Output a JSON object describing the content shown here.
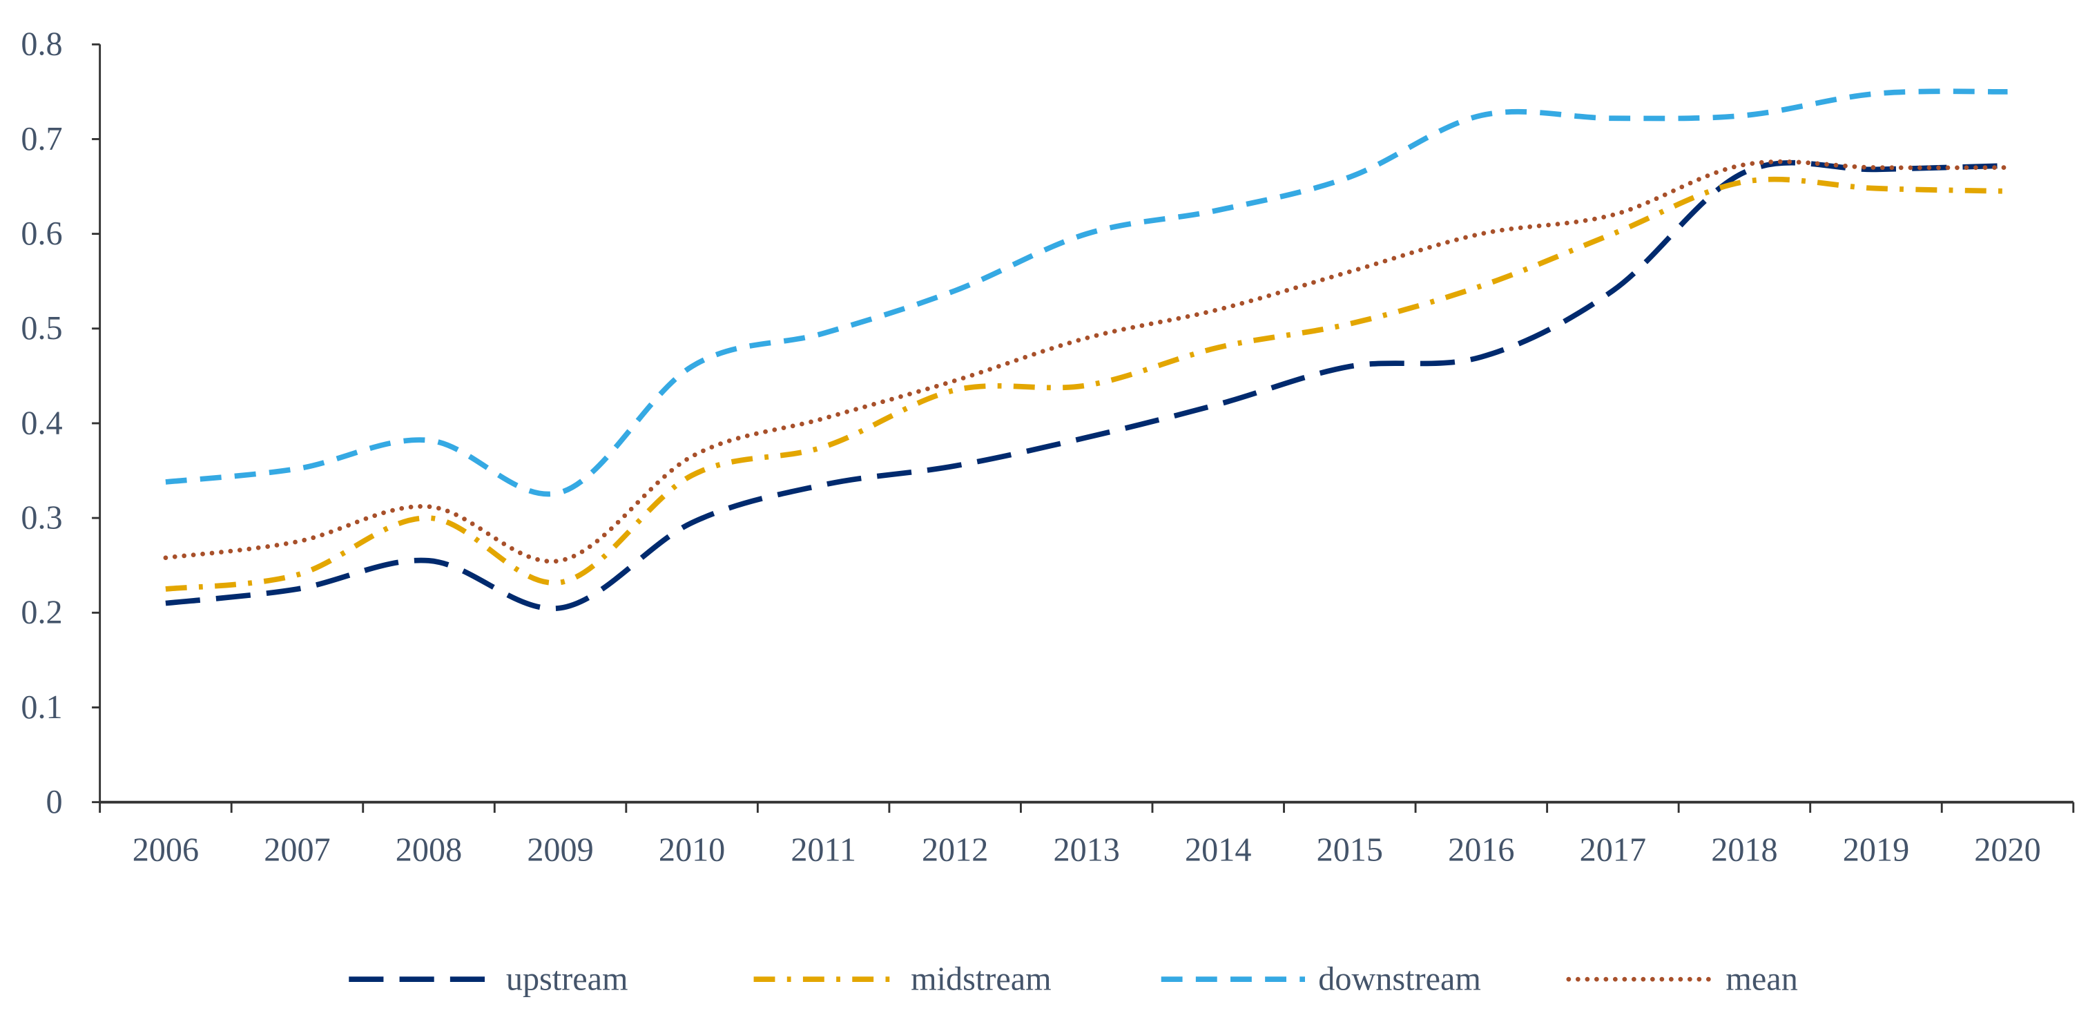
{
  "chart_data": {
    "type": "line",
    "title": "",
    "xlabel": "",
    "ylabel": "",
    "categories": [
      "2006",
      "2007",
      "2008",
      "2009",
      "2010",
      "2011",
      "2012",
      "2013",
      "2014",
      "2015",
      "2016",
      "2017",
      "2018",
      "2019",
      "2020"
    ],
    "ylim": [
      0,
      0.8
    ],
    "yticks": [
      "0",
      "0.1",
      "0.2",
      "0.3",
      "0.4",
      "0.5",
      "0.6",
      "0.7",
      "0.8"
    ],
    "grid": false,
    "legend_position": "bottom",
    "series": [
      {
        "name": "upstream",
        "style": "long-dash",
        "color": "#002A6E",
        "values": [
          0.21,
          0.225,
          0.255,
          0.205,
          0.295,
          0.335,
          0.355,
          0.385,
          0.42,
          0.46,
          0.47,
          0.54,
          0.665,
          0.668,
          0.672
        ]
      },
      {
        "name": "midstream",
        "style": "dash-dot",
        "color": "#E3A600",
        "values": [
          0.225,
          0.24,
          0.3,
          0.232,
          0.345,
          0.375,
          0.435,
          0.44,
          0.48,
          0.505,
          0.545,
          0.6,
          0.655,
          0.648,
          0.645
        ]
      },
      {
        "name": "downstream",
        "style": "dash",
        "color": "#35A9E3",
        "values": [
          0.338,
          0.352,
          0.382,
          0.327,
          0.46,
          0.495,
          0.54,
          0.6,
          0.625,
          0.66,
          0.725,
          0.722,
          0.725,
          0.748,
          0.75
        ]
      },
      {
        "name": "mean",
        "style": "dot",
        "color": "#A8502A",
        "values": [
          0.258,
          0.275,
          0.312,
          0.255,
          0.365,
          0.405,
          0.445,
          0.49,
          0.52,
          0.56,
          0.6,
          0.62,
          0.673,
          0.67,
          0.67
        ]
      }
    ]
  }
}
